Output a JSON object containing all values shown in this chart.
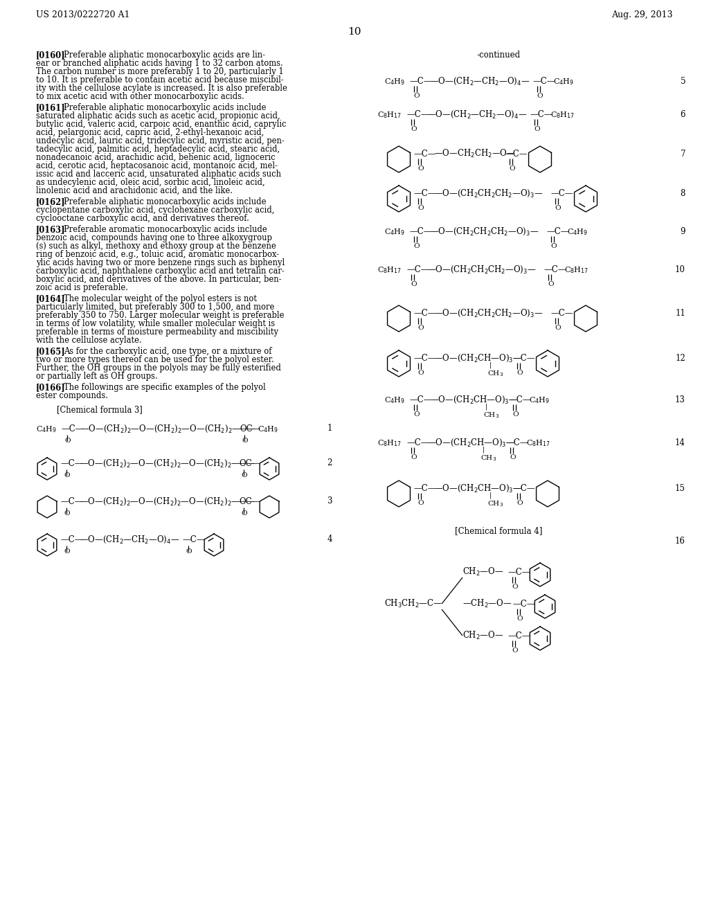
{
  "page_header_left": "US 2013/0222720 A1",
  "page_header_right": "Aug. 29, 2013",
  "page_number": "10",
  "continued_label": "-continued",
  "background_color": "#ffffff",
  "text_color": "#000000"
}
